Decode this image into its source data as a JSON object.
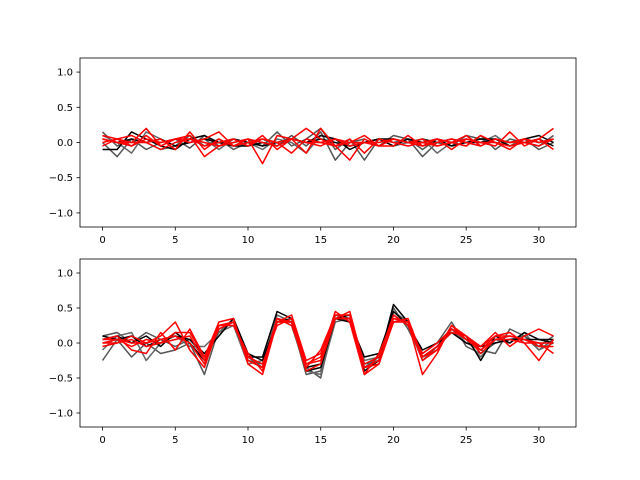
{
  "chart_data": [
    {
      "type": "line",
      "xlim": [
        -1.55,
        32.55
      ],
      "ylim": [
        -1.2,
        1.2
      ],
      "xticks": [
        0,
        5,
        10,
        15,
        20,
        25,
        30
      ],
      "yticks": [
        -1.0,
        -0.5,
        0.0,
        0.5,
        1.0
      ],
      "xtick_labels": [
        "0",
        "5",
        "10",
        "15",
        "20",
        "25",
        "30"
      ],
      "ytick_labels": [
        "−1.0",
        "−0.5",
        "0.0",
        "0.5",
        "1.0"
      ],
      "x": [
        0,
        1,
        2,
        3,
        4,
        5,
        6,
        7,
        8,
        9,
        10,
        11,
        12,
        13,
        14,
        15,
        16,
        17,
        18,
        19,
        20,
        21,
        22,
        23,
        24,
        25,
        26,
        27,
        28,
        29,
        30,
        31
      ],
      "series": [
        {
          "color": "#555555",
          "values": [
            0.15,
            -0.05,
            0.05,
            -0.1,
            0.0,
            0.05,
            -0.08,
            0.1,
            -0.05,
            0.0,
            0.05,
            -0.05,
            0.15,
            -0.05,
            0.05,
            0.2,
            -0.1,
            0.05,
            -0.25,
            0.05,
            0.0,
            0.05,
            -0.1,
            0.05,
            0.0,
            -0.05,
            0.1,
            -0.1,
            0.05,
            0.0,
            -0.05,
            0.1
          ]
        },
        {
          "color": "#555555",
          "values": [
            0.0,
            -0.2,
            0.05,
            0.0,
            -0.1,
            -0.05,
            0.1,
            -0.05,
            0.05,
            -0.1,
            0.0,
            0.05,
            -0.05,
            0.1,
            -0.05,
            0.15,
            -0.25,
            0.0,
            0.05,
            -0.05,
            0.1,
            0.05,
            -0.2,
            0.0,
            -0.05,
            0.1,
            0.05,
            0.0,
            -0.05,
            0.05,
            -0.1,
            0.0
          ]
        },
        {
          "color": "#666666",
          "values": [
            0.1,
            0.0,
            -0.15,
            0.15,
            0.05,
            -0.05,
            0.0,
            0.05,
            -0.1,
            0.05,
            0.0,
            -0.1,
            0.05,
            0.0,
            -0.15,
            0.1,
            0.05,
            -0.05,
            0.0,
            0.05,
            -0.05,
            0.0,
            0.05,
            -0.15,
            0.0,
            0.05,
            0.0,
            0.1,
            -0.05,
            0.05,
            0.0,
            0.05
          ]
        },
        {
          "color": "#000000",
          "values": [
            -0.1,
            -0.1,
            0.15,
            0.05,
            -0.05,
            -0.1,
            0.05,
            0.1,
            0.0,
            -0.05,
            -0.05,
            0.0,
            -0.05,
            0.05,
            0.0,
            0.1,
            0.05,
            -0.1,
            0.0,
            0.05,
            -0.05,
            0.05,
            0.0,
            0.05,
            -0.05,
            0.0,
            0.05,
            0.05,
            -0.05,
            0.0,
            0.05,
            -0.05
          ]
        },
        {
          "color": "#000000",
          "values": [
            0.05,
            0.0,
            0.05,
            0.0,
            0.05,
            -0.05,
            0.0,
            0.05,
            0.0,
            0.05,
            0.0,
            -0.05,
            0.0,
            0.05,
            0.0,
            0.05,
            0.0,
            -0.05,
            0.0,
            0.05,
            0.05,
            0.0,
            0.05,
            0.0,
            0.05,
            0.0,
            0.0,
            0.05,
            0.0,
            0.05,
            0.1,
            0.0
          ]
        },
        {
          "color": "#ff0000",
          "values": [
            0.05,
            0.0,
            0.0,
            0.2,
            -0.05,
            0.05,
            0.1,
            -0.2,
            -0.05,
            0.05,
            -0.05,
            0.1,
            -0.1,
            0.05,
            -0.15,
            0.2,
            -0.05,
            -0.25,
            0.05,
            -0.05,
            -0.05,
            0.1,
            -0.05,
            0.05,
            -0.1,
            0.05,
            0.0,
            -0.05,
            0.15,
            -0.05,
            0.05,
            -0.1
          ]
        },
        {
          "color": "#ff0000",
          "values": [
            0.1,
            0.05,
            0.1,
            0.0,
            0.05,
            -0.1,
            0.15,
            -0.1,
            0.05,
            -0.05,
            0.05,
            -0.3,
            0.1,
            0.05,
            0.2,
            0.05,
            -0.05,
            0.0,
            0.1,
            -0.05,
            0.05,
            0.0,
            0.05,
            -0.05,
            0.0,
            0.1,
            -0.05,
            0.05,
            0.0,
            0.05,
            0.0,
            0.05
          ]
        },
        {
          "color": "#ff0000",
          "values": [
            0.0,
            0.05,
            -0.05,
            0.1,
            -0.05,
            0.05,
            0.0,
            0.05,
            0.15,
            -0.05,
            0.0,
            0.05,
            0.0,
            -0.15,
            0.05,
            0.0,
            -0.05,
            0.05,
            -0.15,
            0.05,
            0.0,
            -0.05,
            0.0,
            0.05,
            0.0,
            -0.05,
            0.1,
            0.0,
            -0.1,
            0.05,
            0.0,
            0.05
          ]
        },
        {
          "color": "#ff0000",
          "values": [
            0.05,
            0.0,
            -0.05,
            0.05,
            0.0,
            0.05,
            0.05,
            -0.05,
            0.0,
            0.05,
            -0.05,
            0.05,
            0.0,
            0.05,
            0.0,
            -0.05,
            0.05,
            0.0,
            0.0,
            -0.05,
            0.05,
            0.0,
            -0.05,
            0.0,
            0.05,
            0.0,
            -0.05,
            0.05,
            0.0,
            0.0,
            -0.05,
            0.05
          ]
        },
        {
          "color": "#ff0000",
          "values": [
            -0.05,
            0.05,
            0.0,
            0.0,
            -0.1,
            0.0,
            0.05,
            0.0,
            -0.05,
            0.0,
            0.05,
            0.0,
            -0.05,
            0.05,
            0.0,
            0.0,
            0.05,
            -0.05,
            0.0,
            0.0,
            0.05,
            0.0,
            0.0,
            -0.05,
            0.0,
            0.05,
            0.0,
            0.0,
            -0.05,
            0.0,
            0.05,
            0.2
          ]
        }
      ]
    },
    {
      "type": "line",
      "xlim": [
        -1.55,
        32.55
      ],
      "ylim": [
        -1.2,
        1.2
      ],
      "xticks": [
        0,
        5,
        10,
        15,
        20,
        25,
        30
      ],
      "yticks": [
        -1.0,
        -0.5,
        0.0,
        0.5,
        1.0
      ],
      "xtick_labels": [
        "0",
        "5",
        "10",
        "15",
        "20",
        "25",
        "30"
      ],
      "ytick_labels": [
        "−1.0",
        "−0.5",
        "0.0",
        "0.5",
        "1.0"
      ],
      "x": [
        0,
        1,
        2,
        3,
        4,
        5,
        6,
        7,
        8,
        9,
        10,
        11,
        12,
        13,
        14,
        15,
        16,
        17,
        18,
        19,
        20,
        21,
        22,
        23,
        24,
        25,
        26,
        27,
        28,
        29,
        30,
        31
      ],
      "series": [
        {
          "color": "#555555",
          "values": [
            -0.25,
            0.05,
            -0.2,
            0.0,
            -0.15,
            -0.1,
            0.0,
            -0.45,
            0.2,
            0.3,
            -0.2,
            -0.35,
            0.3,
            0.3,
            -0.45,
            -0.4,
            0.35,
            0.3,
            -0.35,
            -0.2,
            0.45,
            0.3,
            -0.15,
            0.0,
            0.3,
            -0.05,
            -0.15,
            0.0,
            0.05,
            0.1,
            -0.1,
            0.05
          ]
        },
        {
          "color": "#555555",
          "values": [
            0.1,
            0.15,
            0.0,
            0.15,
            0.05,
            -0.05,
            0.05,
            -0.2,
            0.15,
            0.35,
            -0.25,
            -0.3,
            0.4,
            0.3,
            -0.35,
            -0.5,
            0.4,
            0.35,
            -0.3,
            -0.25,
            0.5,
            0.2,
            -0.2,
            -0.1,
            0.2,
            0.0,
            -0.1,
            -0.15,
            0.2,
            0.1,
            -0.05,
            0.1
          ]
        },
        {
          "color": "#666666",
          "values": [
            -0.1,
            0.1,
            0.15,
            -0.25,
            0.0,
            0.1,
            -0.05,
            -0.05,
            0.15,
            0.25,
            -0.3,
            -0.25,
            0.35,
            0.25,
            -0.4,
            -0.45,
            0.3,
            0.35,
            -0.25,
            -0.2,
            0.4,
            0.25,
            -0.25,
            -0.05,
            0.15,
            0.05,
            -0.2,
            0.05,
            0.0,
            0.15,
            -0.1,
            0.0
          ]
        },
        {
          "color": "#000000",
          "values": [
            0.05,
            0.1,
            0.0,
            0.1,
            -0.05,
            0.15,
            0.0,
            -0.25,
            0.2,
            0.3,
            -0.2,
            -0.2,
            0.45,
            0.35,
            -0.4,
            -0.35,
            0.35,
            0.4,
            -0.4,
            -0.25,
            0.55,
            0.3,
            -0.2,
            -0.05,
            0.2,
            0.1,
            -0.25,
            0.1,
            0.0,
            0.15,
            0.05,
            0.0
          ]
        },
        {
          "color": "#000000",
          "values": [
            0.1,
            0.05,
            0.1,
            -0.05,
            0.05,
            0.1,
            0.05,
            -0.15,
            0.1,
            0.35,
            -0.15,
            -0.25,
            0.3,
            0.35,
            -0.35,
            -0.3,
            0.35,
            0.3,
            -0.2,
            -0.15,
            0.45,
            0.25,
            -0.1,
            0.0,
            0.15,
            0.0,
            -0.05,
            0.0,
            0.05,
            0.05,
            0.05,
            0.05
          ]
        },
        {
          "color": "#ff0000",
          "values": [
            0.0,
            0.0,
            0.1,
            0.0,
            0.1,
            0.3,
            -0.1,
            -0.35,
            0.25,
            0.25,
            -0.15,
            -0.4,
            0.35,
            0.25,
            -0.3,
            -0.2,
            0.45,
            0.3,
            -0.45,
            -0.15,
            0.35,
            0.3,
            -0.45,
            -0.15,
            0.25,
            0.1,
            -0.05,
            0.15,
            -0.05,
            0.1,
            0.2,
            0.1
          ]
        },
        {
          "color": "#ff0000",
          "values": [
            0.05,
            0.1,
            -0.1,
            -0.15,
            0.15,
            -0.1,
            0.2,
            -0.2,
            0.3,
            0.35,
            -0.3,
            -0.45,
            0.3,
            0.4,
            -0.25,
            -0.15,
            0.35,
            0.45,
            -0.35,
            -0.3,
            0.3,
            0.35,
            -0.2,
            -0.1,
            0.25,
            0.05,
            -0.05,
            0.1,
            0.15,
            0.0,
            -0.25,
            0.05
          ]
        },
        {
          "color": "#ff0000",
          "values": [
            -0.05,
            0.0,
            0.05,
            -0.05,
            0.0,
            0.15,
            0.15,
            -0.2,
            0.25,
            0.3,
            -0.25,
            -0.35,
            0.3,
            0.3,
            -0.35,
            -0.1,
            0.4,
            0.4,
            -0.3,
            -0.2,
            0.4,
            0.25,
            -0.15,
            0.0,
            0.2,
            0.1,
            -0.15,
            0.05,
            0.1,
            0.05,
            -0.05,
            -0.05
          ]
        },
        {
          "color": "#ff0000",
          "values": [
            0.0,
            0.05,
            -0.05,
            0.05,
            0.0,
            0.05,
            0.1,
            -0.25,
            0.2,
            0.3,
            -0.2,
            -0.3,
            0.25,
            0.35,
            -0.3,
            -0.25,
            0.35,
            0.35,
            -0.35,
            -0.25,
            0.3,
            0.3,
            -0.2,
            -0.05,
            0.15,
            0.1,
            -0.1,
            0.05,
            0.05,
            0.0,
            0.0,
            -0.15
          ]
        },
        {
          "color": "#ff0000",
          "values": [
            0.05,
            0.05,
            0.0,
            0.0,
            0.05,
            0.1,
            0.0,
            -0.3,
            0.25,
            0.3,
            -0.25,
            -0.35,
            0.35,
            0.3,
            -0.4,
            -0.3,
            0.35,
            0.35,
            -0.45,
            -0.3,
            0.35,
            0.3,
            -0.25,
            -0.1,
            0.2,
            0.05,
            -0.1,
            0.1,
            0.1,
            0.05,
            0.0,
            0.0
          ]
        }
      ]
    }
  ]
}
